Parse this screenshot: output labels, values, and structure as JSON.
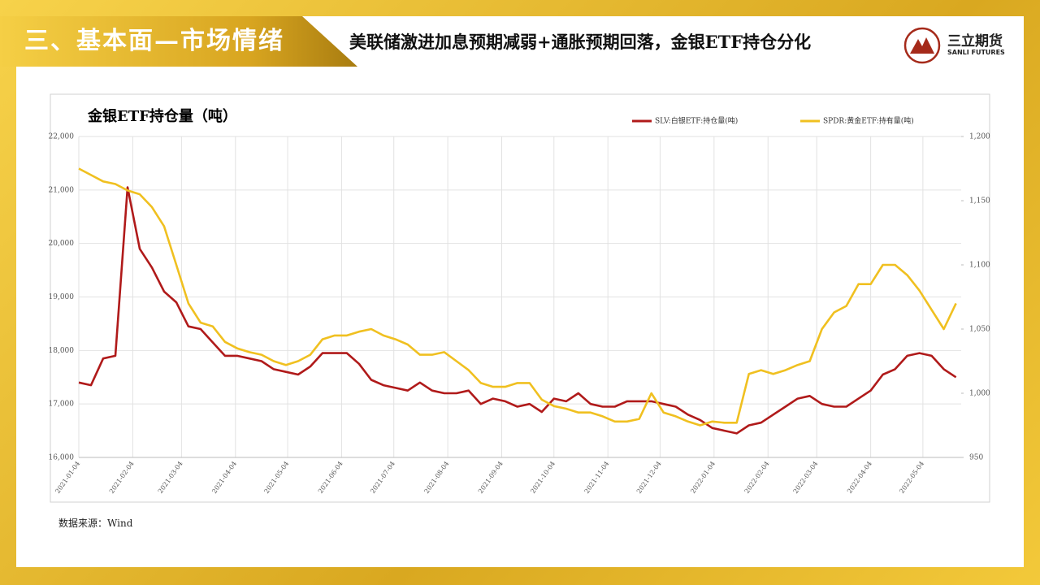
{
  "header": {
    "section": "三、基本面—市场情绪",
    "title": "美联储激进加息预期减弱+通胀预期回落，金银ETF持仓分化",
    "logo_cn": "三立期货",
    "logo_en": "SANLI FUTURES"
  },
  "source": "数据来源：Wind",
  "chart_data": {
    "type": "line",
    "title": "金银ETF持仓量（吨）",
    "x": [
      "2021-01-04",
      "2021-01-11",
      "2021-01-18",
      "2021-01-25",
      "2021-02-01",
      "2021-02-08",
      "2021-02-15",
      "2021-02-22",
      "2021-03-01",
      "2021-03-08",
      "2021-03-15",
      "2021-03-22",
      "2021-03-29",
      "2021-04-05",
      "2021-04-12",
      "2021-04-19",
      "2021-04-26",
      "2021-05-03",
      "2021-05-10",
      "2021-05-17",
      "2021-05-24",
      "2021-05-31",
      "2021-06-07",
      "2021-06-14",
      "2021-06-21",
      "2021-06-28",
      "2021-07-05",
      "2021-07-12",
      "2021-07-19",
      "2021-07-26",
      "2021-08-02",
      "2021-08-09",
      "2021-08-16",
      "2021-08-23",
      "2021-08-30",
      "2021-09-06",
      "2021-09-13",
      "2021-09-20",
      "2021-09-27",
      "2021-10-04",
      "2021-10-11",
      "2021-10-18",
      "2021-10-25",
      "2021-11-01",
      "2021-11-08",
      "2021-11-15",
      "2021-11-22",
      "2021-11-29",
      "2021-12-06",
      "2021-12-13",
      "2021-12-20",
      "2021-12-27",
      "2022-01-03",
      "2022-01-10",
      "2022-01-17",
      "2022-01-24",
      "2022-01-31",
      "2022-02-07",
      "2022-02-14",
      "2022-02-21",
      "2022-02-28",
      "2022-03-07",
      "2022-03-14",
      "2022-03-21",
      "2022-03-28",
      "2022-04-04",
      "2022-04-11",
      "2022-04-18",
      "2022-04-25",
      "2022-05-02",
      "2022-05-09",
      "2022-05-16",
      "2022-05-23"
    ],
    "xlim": [
      "2021-01-04",
      "2022-05-26"
    ],
    "xticks": [
      "2021-01-04",
      "2021-02-04",
      "2021-03-04",
      "2021-04-04",
      "2021-05-04",
      "2021-06-04",
      "2021-07-04",
      "2021-08-04",
      "2021-09-04",
      "2021-10-04",
      "2021-11-04",
      "2021-12-04",
      "2022-01-04",
      "2022-02-04",
      "2022-03-04",
      "2022-04-04",
      "2022-05-04"
    ],
    "ylim": [
      16000,
      22000
    ],
    "yticks": [
      {
        "value": 16000,
        "label": "16,000"
      },
      {
        "value": 17000,
        "label": "17,000"
      },
      {
        "value": 18000,
        "label": "18,000"
      },
      {
        "value": 19000,
        "label": "19,000"
      },
      {
        "value": 20000,
        "label": "20,000"
      },
      {
        "value": 21000,
        "label": "21,000"
      },
      {
        "value": 22000,
        "label": "22,000"
      }
    ],
    "y2lim": [
      950,
      1200
    ],
    "y2ticks": [
      950,
      {
        "value": 1000,
        "label": "1,000"
      },
      {
        "value": 1050,
        "label": "1,050"
      },
      {
        "value": 1100,
        "label": "1,100"
      },
      {
        "value": 1150,
        "label": "1,150"
      },
      {
        "value": 1200,
        "label": "1,200"
      }
    ],
    "grid": true,
    "series": [
      {
        "name": "SLV:白银ETF:持仓量(吨)",
        "color": "#b01a1a",
        "values": [
          17400,
          17350,
          17850,
          17900,
          21050,
          19900,
          19550,
          19100,
          18900,
          18450,
          18400,
          18150,
          17900,
          17900,
          17850,
          17800,
          17650,
          17600,
          17550,
          17700,
          17950,
          17950,
          17950,
          17750,
          17450,
          17350,
          17300,
          17250,
          17400,
          17250,
          17200,
          17200,
          17250,
          17000,
          17100,
          17050,
          16950,
          17000,
          16850,
          17100,
          17050,
          17200,
          17000,
          16950,
          16950,
          17050,
          17050,
          17050,
          17000,
          16950,
          16800,
          16700,
          16550,
          16500,
          16450,
          16600,
          16650,
          16800,
          16950,
          17100,
          17150,
          17000,
          16950,
          16950,
          17100,
          17250,
          17550,
          17650,
          17900,
          17950,
          17900,
          17650,
          17500
        ]
      },
      {
        "name": "SPDR:黄金ETF:持有量(吨)",
        "color": "#f0c020",
        "axis": "y2",
        "values": [
          1175,
          1170,
          1165,
          1163,
          1158,
          1155,
          1145,
          1130,
          1100,
          1070,
          1055,
          1052,
          1040,
          1035,
          1032,
          1030,
          1025,
          1022,
          1025,
          1030,
          1042,
          1045,
          1045,
          1048,
          1050,
          1045,
          1042,
          1038,
          1030,
          1030,
          1032,
          1025,
          1018,
          1008,
          1005,
          1005,
          1008,
          1008,
          995,
          990,
          988,
          985,
          985,
          982,
          978,
          978,
          980,
          1000,
          985,
          982,
          978,
          975,
          978,
          977,
          977,
          1015,
          1018,
          1015,
          1018,
          1022,
          1025,
          1050,
          1063,
          1068,
          1085,
          1085,
          1100,
          1100,
          1092,
          1080,
          1065,
          1050,
          1070
        ]
      }
    ]
  }
}
